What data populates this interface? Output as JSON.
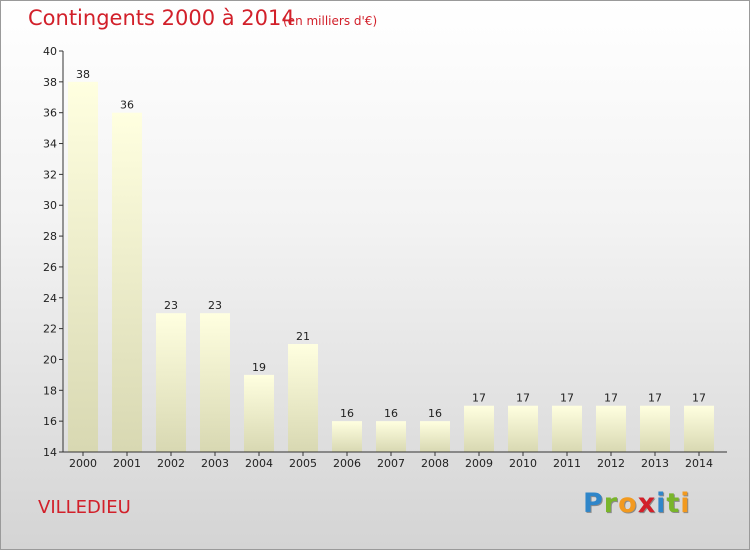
{
  "header": {
    "title": "Contingents 2000 à 2014",
    "subtitle": "(en milliers d'€)"
  },
  "footer": {
    "commune": "VILLEDIEU",
    "brand": "Proxiti",
    "brand_letters": [
      {
        "ch": "P",
        "color": "#2f86c9"
      },
      {
        "ch": "r",
        "color": "#79b52a"
      },
      {
        "ch": "o",
        "color": "#f29a1f"
      },
      {
        "ch": "x",
        "color": "#d2202a"
      },
      {
        "ch": "i",
        "color": "#2f86c9"
      },
      {
        "ch": "t",
        "color": "#79b52a"
      },
      {
        "ch": "i",
        "color": "#f29a1f"
      }
    ]
  },
  "colors": {
    "title": "#d2202a",
    "bar_top": "#ffffe0",
    "bar_bottom": "#d8d8b2",
    "axis": "#333333",
    "label": "#222222"
  },
  "chart_data": {
    "type": "bar",
    "categories": [
      "2000",
      "2001",
      "2002",
      "2003",
      "2004",
      "2005",
      "2006",
      "2007",
      "2008",
      "2009",
      "2010",
      "2011",
      "2012",
      "2013",
      "2014"
    ],
    "values": [
      38,
      36,
      23,
      23,
      19,
      21,
      16,
      16,
      16,
      17,
      17,
      17,
      17,
      17,
      17
    ],
    "data_labels": [
      "38",
      "36",
      "23",
      "23",
      "19",
      "21",
      "16",
      "16",
      "16",
      "17",
      "17",
      "17",
      "17",
      "17",
      "17"
    ],
    "ylim": [
      14,
      40
    ],
    "yticks": [
      14,
      16,
      18,
      20,
      22,
      24,
      26,
      28,
      30,
      32,
      34,
      36,
      38,
      40
    ],
    "title": "Contingents 2000 à 2014",
    "xlabel": "",
    "ylabel": "",
    "grid": false,
    "legend": "none"
  }
}
